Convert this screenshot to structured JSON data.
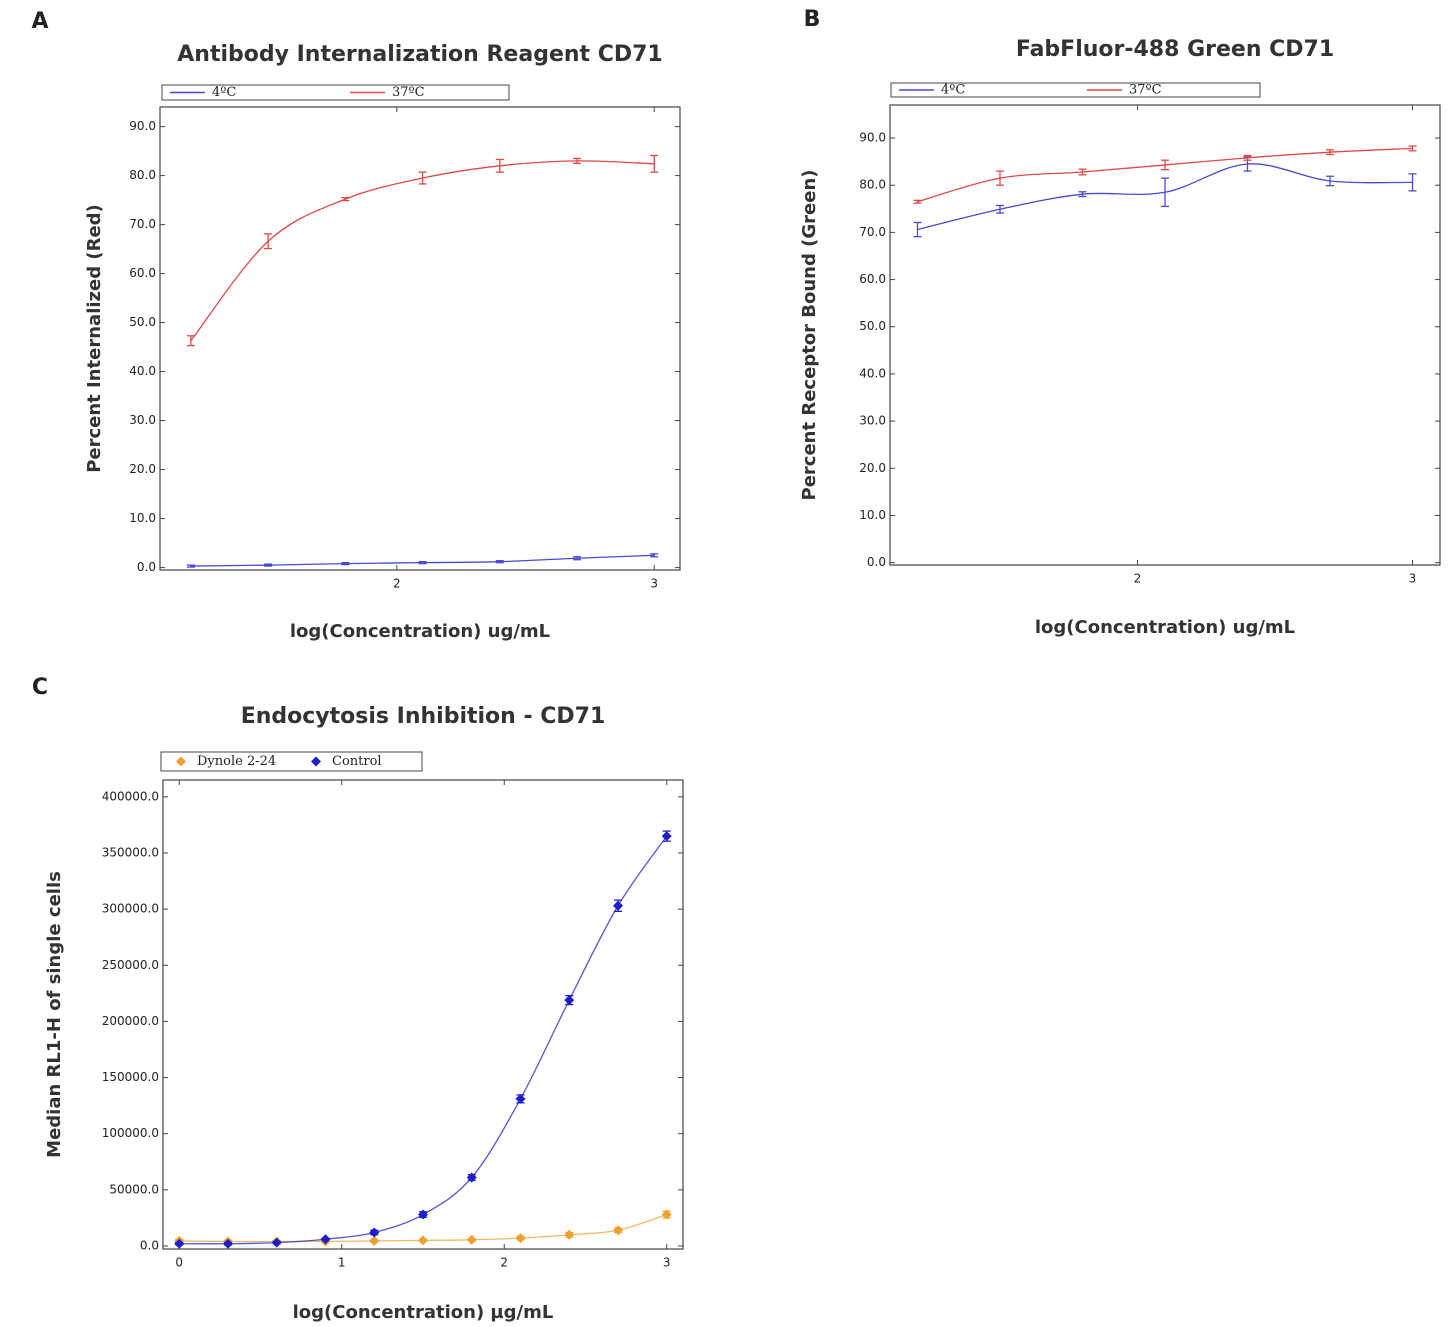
{
  "chart_data": [
    {
      "type": "line",
      "panel": "A",
      "title": "Antibody Internalization Reagent CD71",
      "x_label": "log(Concentration) ug/mL",
      "y_label": "Percent Internalized (Red)",
      "x": [
        1.2,
        1.5,
        1.8,
        2.1,
        2.4,
        2.7,
        3.0
      ],
      "series": [
        {
          "name": "4ºC",
          "color": "#4a4ad0",
          "values": [
            0.3,
            0.5,
            0.8,
            1.0,
            1.2,
            1.9,
            2.5
          ],
          "errors": [
            0.2,
            0.2,
            0.2,
            0.2,
            0.2,
            0.3,
            0.3
          ]
        },
        {
          "name": "37ºC",
          "color": "#e04848",
          "values": [
            46.3,
            66.6,
            75.2,
            79.5,
            82.0,
            83.0,
            82.4
          ],
          "errors": [
            1.0,
            1.5,
            0.3,
            1.2,
            1.3,
            0.5,
            1.7
          ]
        }
      ],
      "xlim": [
        1.08,
        3.1
      ],
      "xticks": [
        2,
        3
      ],
      "ylim": [
        -0.5,
        94
      ],
      "yticks": [
        {
          "value": 0,
          "label": "0.0"
        },
        {
          "value": 10,
          "label": "10.0"
        },
        {
          "value": 20,
          "label": "20.0"
        },
        {
          "value": 30,
          "label": "30.0"
        },
        {
          "value": 40,
          "label": "40.0"
        },
        {
          "value": 50,
          "label": "50.0"
        },
        {
          "value": 60,
          "label": "60.0"
        },
        {
          "value": 70,
          "label": "70.0"
        },
        {
          "value": 80,
          "label": "80.0"
        },
        {
          "value": 90,
          "label": "90.0"
        }
      ],
      "legend": "top",
      "marker": "none"
    },
    {
      "type": "line",
      "panel": "B",
      "title": "FabFluor-488 Green CD71",
      "x_label": "log(Concentration) ug/mL",
      "y_label": "Percent Receptor Bound (Green)",
      "x": [
        1.2,
        1.5,
        1.8,
        2.1,
        2.4,
        2.7,
        3.0
      ],
      "series": [
        {
          "name": "4ºC",
          "color": "#4a4ad0",
          "values": [
            70.6,
            74.9,
            78.1,
            78.5,
            84.5,
            80.9,
            80.6
          ],
          "errors": [
            1.5,
            0.8,
            0.5,
            3.0,
            1.5,
            1.0,
            1.8
          ]
        },
        {
          "name": "37ºC",
          "color": "#e04848",
          "values": [
            76.5,
            81.5,
            82.8,
            84.3,
            85.8,
            87.0,
            87.8
          ],
          "errors": [
            0.3,
            1.5,
            0.6,
            1.0,
            0.5,
            0.5,
            0.5
          ]
        }
      ],
      "xlim": [
        1.1,
        3.1
      ],
      "xticks": [
        2,
        3
      ],
      "ylim": [
        -0.5,
        97
      ],
      "yticks": [
        {
          "value": 0,
          "label": "0.0"
        },
        {
          "value": 10,
          "label": "10.0"
        },
        {
          "value": 20,
          "label": "20.0"
        },
        {
          "value": 30,
          "label": "30.0"
        },
        {
          "value": 40,
          "label": "40.0"
        },
        {
          "value": 50,
          "label": "50.0"
        },
        {
          "value": 60,
          "label": "60.0"
        },
        {
          "value": 70,
          "label": "70.0"
        },
        {
          "value": 80,
          "label": "80.0"
        },
        {
          "value": 90,
          "label": "90.0"
        }
      ],
      "legend": "top",
      "marker": "none"
    },
    {
      "type": "line",
      "panel": "C",
      "title": "Endocytosis Inhibition - CD71",
      "x_label": "log(Concentration) µg/mL",
      "y_label": "Median RL1-H of single cells",
      "x": [
        0,
        0.3,
        0.6,
        0.9,
        1.2,
        1.5,
        1.8,
        2.1,
        2.4,
        2.7,
        3.0
      ],
      "series": [
        {
          "name": "Dynole 2-24",
          "color": "#f0a030",
          "values": [
            4500,
            4000,
            4000,
            4000,
            4500,
            5000,
            5500,
            7000,
            10000,
            14000,
            28000
          ],
          "errors": [
            1500,
            1000,
            1000,
            1000,
            1000,
            1000,
            1000,
            1500,
            2000,
            2000,
            3000
          ]
        },
        {
          "name": "Control",
          "color": "#1e1ec8",
          "values": [
            2000,
            2000,
            3000,
            6000,
            12000,
            28000,
            61000,
            131000,
            219000,
            303000,
            365000
          ],
          "errors": [
            1000,
            1000,
            1000,
            1000,
            2000,
            2500,
            2500,
            3500,
            4000,
            5000,
            4500
          ]
        }
      ],
      "xlim": [
        -0.1,
        3.1
      ],
      "xticks": [
        0,
        1,
        2,
        3
      ],
      "ylim": [
        -2700,
        415000
      ],
      "yticks": [
        {
          "value": 0,
          "label": "0.0"
        },
        {
          "value": 50000,
          "label": "50000.0"
        },
        {
          "value": 100000,
          "label": "100000.0"
        },
        {
          "value": 150000,
          "label": "150000.0"
        },
        {
          "value": 200000,
          "label": "200000.0"
        },
        {
          "value": 250000,
          "label": "250000.0"
        },
        {
          "value": 300000,
          "label": "300000.0"
        },
        {
          "value": 350000,
          "label": "350000.0"
        },
        {
          "value": 400000,
          "label": "400000.0"
        }
      ],
      "legend": "top",
      "marker": "diamond"
    }
  ]
}
